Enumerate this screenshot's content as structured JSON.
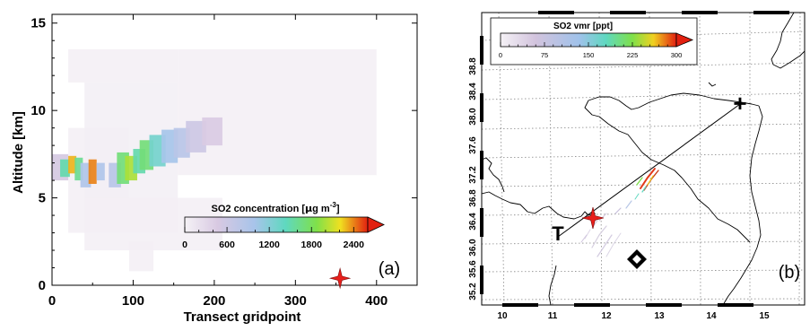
{
  "chart_data": [
    {
      "type": "heatmap",
      "panel_label": "(a)",
      "xlabel": "Transect gridpoint",
      "ylabel": "Altitude [km]",
      "xlim": [
        0,
        450
      ],
      "ylim": [
        0,
        15.5
      ],
      "xticks": [
        0,
        100,
        200,
        300,
        400
      ],
      "yticks": [
        0,
        5,
        10,
        15
      ],
      "colorbar": {
        "title_prefix": "SO2 concentration [",
        "title_mu": "µ",
        "title_mid": "g m",
        "title_sup": "-3",
        "title_suffix": "]",
        "range": [
          0,
          2600
        ],
        "ticks": [
          0,
          600,
          1200,
          1800,
          2400
        ]
      },
      "background_blocks": [
        {
          "x": [
            20,
            155
          ],
          "y": [
            11.6,
            13.5
          ],
          "v": 40
        },
        {
          "x": [
            155,
            400
          ],
          "y": [
            6.3,
            13.5
          ],
          "v": 30
        },
        {
          "x": [
            20,
            95
          ],
          "y": [
            3.0,
            9.0
          ],
          "v": 35
        },
        {
          "x": [
            40,
            155
          ],
          "y": [
            3.0,
            11.6
          ],
          "v": 45
        },
        {
          "x": [
            40,
            210
          ],
          "y": [
            2.0,
            5.0
          ],
          "v": 35
        },
        {
          "x": [
            95,
            125
          ],
          "y": [
            0.8,
            2.5
          ],
          "v": 40
        }
      ],
      "plume_cells": [
        {
          "x": [
            0,
            20
          ],
          "y": [
            6.0,
            7.5
          ],
          "v": 500
        },
        {
          "x": [
            10,
            22
          ],
          "y": [
            6.2,
            7.2
          ],
          "v": 1500
        },
        {
          "x": [
            20,
            30
          ],
          "y": [
            6.4,
            7.4
          ],
          "v": 2300
        },
        {
          "x": [
            28,
            38
          ],
          "y": [
            6.0,
            7.3
          ],
          "v": 1600
        },
        {
          "x": [
            35,
            48
          ],
          "y": [
            5.6,
            7.0
          ],
          "v": 900
        },
        {
          "x": [
            45,
            55
          ],
          "y": [
            5.8,
            7.2
          ],
          "v": 2400
        },
        {
          "x": [
            55,
            65
          ],
          "y": [
            6.0,
            7.0
          ],
          "v": 900
        },
        {
          "x": [
            70,
            85
          ],
          "y": [
            5.6,
            7.0
          ],
          "v": 800
        },
        {
          "x": [
            80,
            95
          ],
          "y": [
            5.8,
            7.6
          ],
          "v": 1700
        },
        {
          "x": [
            90,
            105
          ],
          "y": [
            6.0,
            7.4
          ],
          "v": 2000
        },
        {
          "x": [
            100,
            115
          ],
          "y": [
            6.4,
            7.8
          ],
          "v": 1500
        },
        {
          "x": [
            108,
            125
          ],
          "y": [
            6.6,
            8.3
          ],
          "v": 1700
        },
        {
          "x": [
            120,
            140
          ],
          "y": [
            6.8,
            8.6
          ],
          "v": 1300
        },
        {
          "x": [
            135,
            155
          ],
          "y": [
            7.0,
            8.9
          ],
          "v": 1000
        },
        {
          "x": [
            150,
            170
          ],
          "y": [
            7.3,
            9.0
          ],
          "v": 800
        },
        {
          "x": [
            165,
            190
          ],
          "y": [
            7.6,
            9.4
          ],
          "v": 600
        },
        {
          "x": [
            185,
            210
          ],
          "y": [
            8.0,
            9.6
          ],
          "v": 450
        }
      ],
      "marker": {
        "type": "star",
        "x": 355,
        "y": 0.4,
        "color": "#e8201c"
      }
    },
    {
      "type": "map",
      "panel_label": "(b)",
      "lon_ticks": [
        "10",
        "11",
        "12",
        "13",
        "14",
        "15"
      ],
      "lat_ticks": [
        "35.2",
        "35.6",
        "36.0",
        "36.4",
        "36.8",
        "37.2",
        "37.6",
        "38.0",
        "38.4",
        "38.8"
      ],
      "colorbar": {
        "title": "SO2 vmr [ppt]",
        "range": [
          0,
          300
        ],
        "ticks": [
          "0",
          "75",
          "150",
          "225",
          "300"
        ]
      },
      "transect_labels": {
        "start": "T",
        "end": "+"
      },
      "marker_star_color": "#e8201c"
    }
  ]
}
